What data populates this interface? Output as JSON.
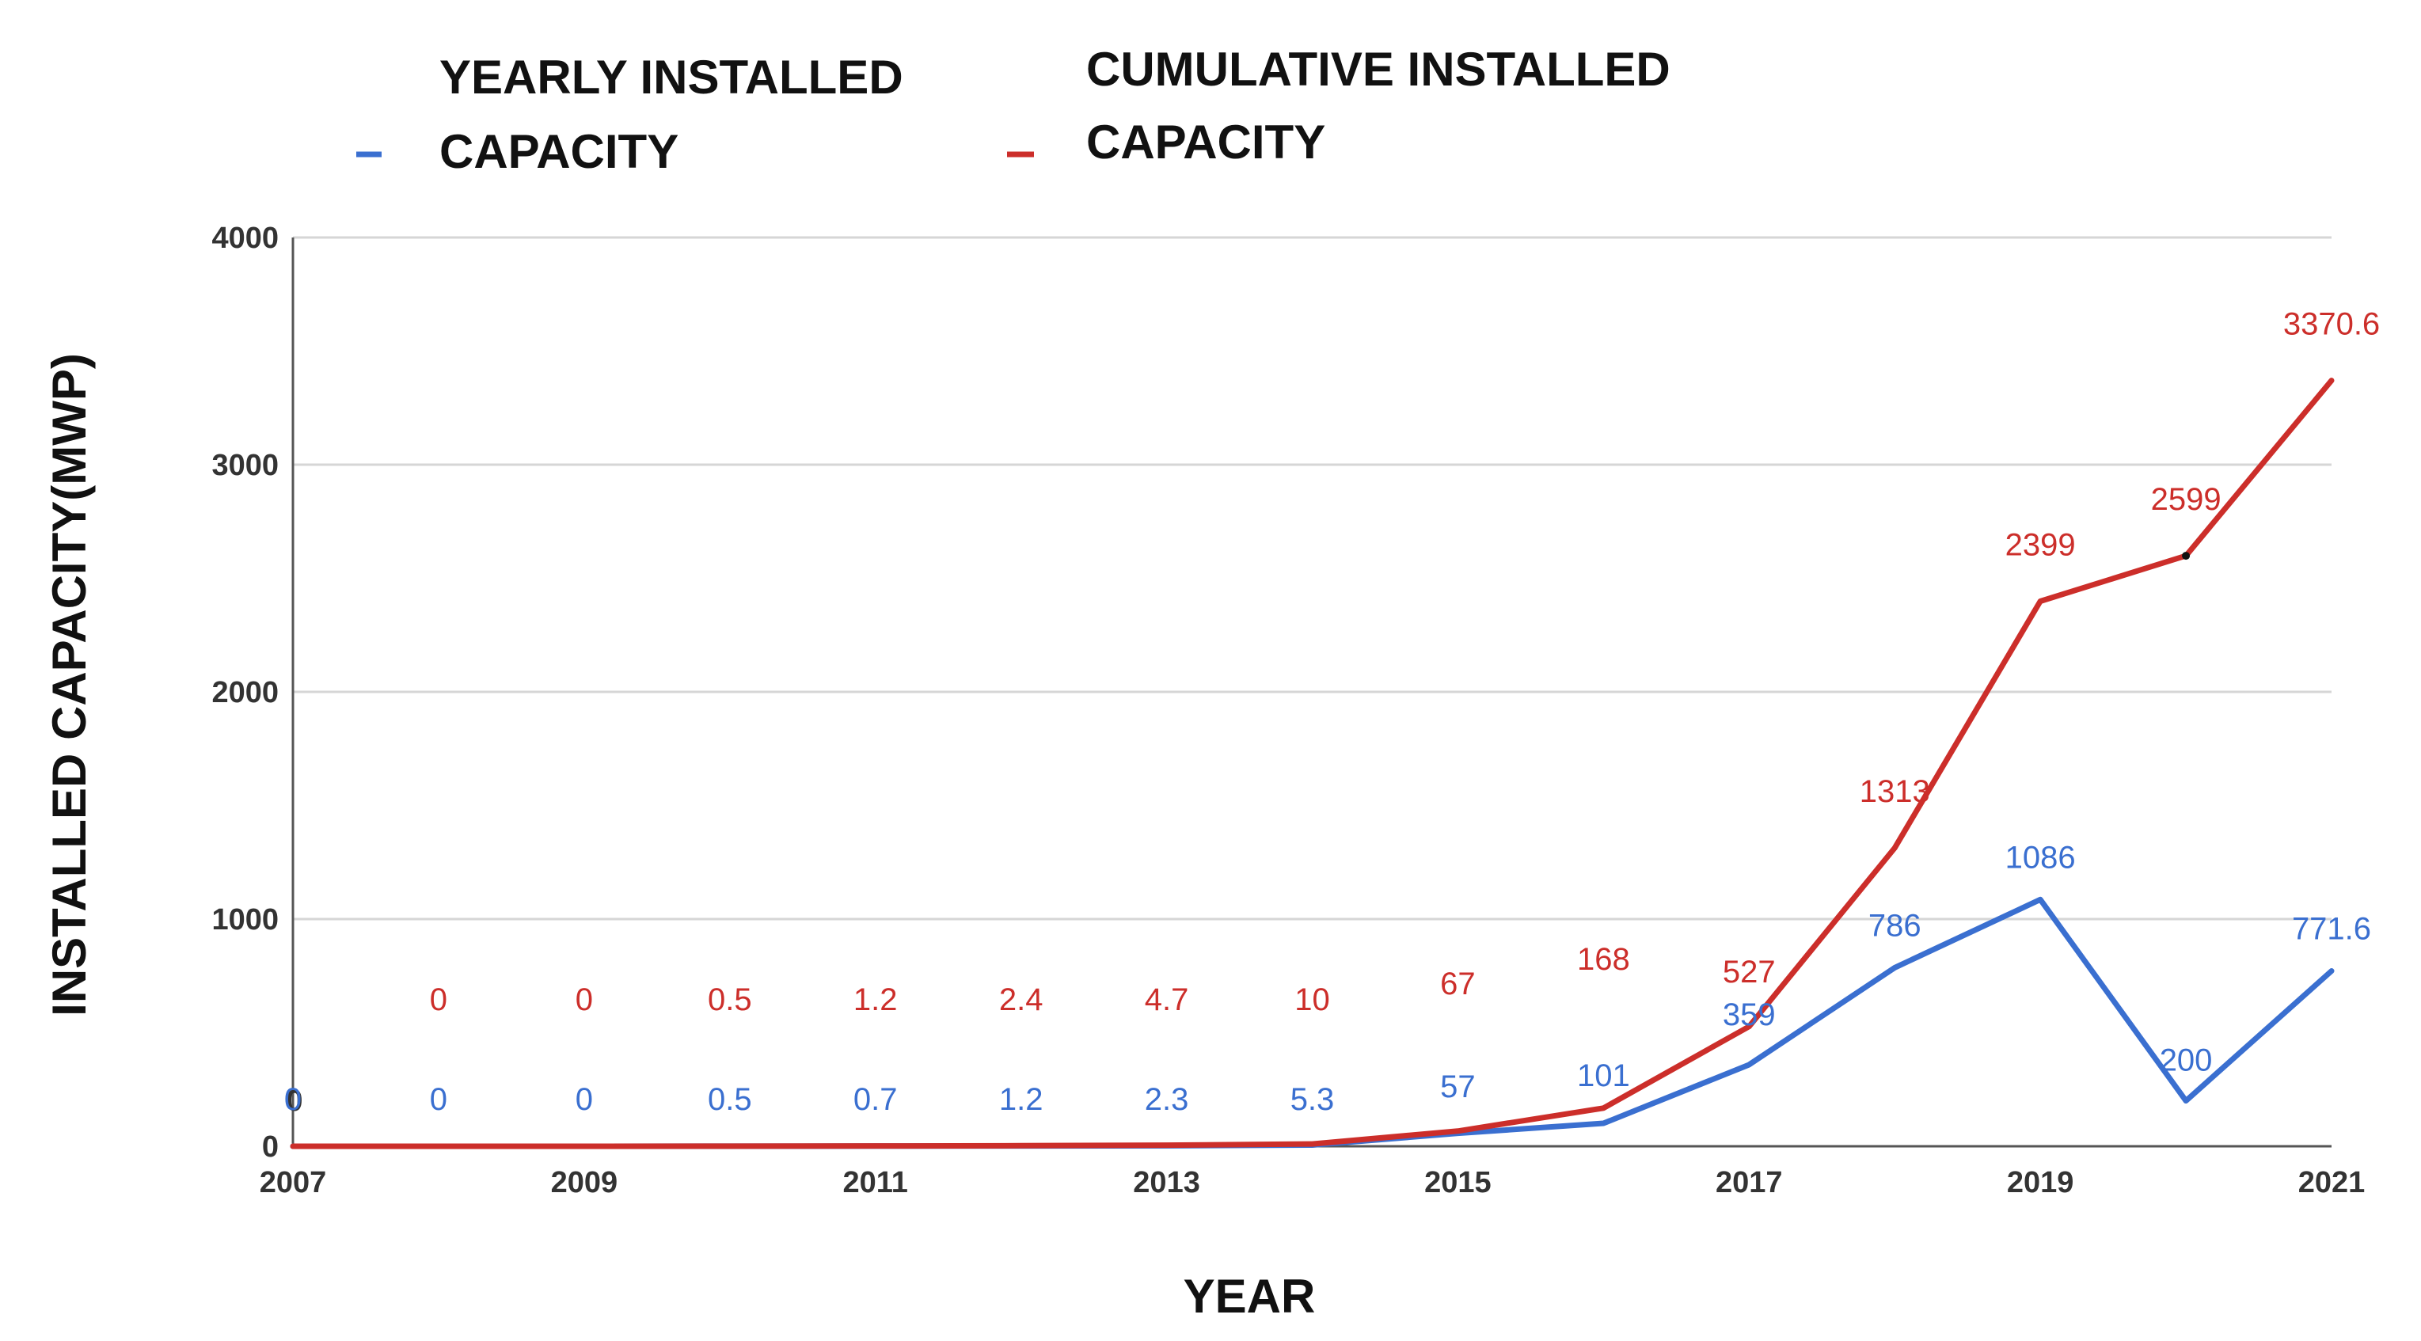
{
  "legend": [
    {
      "line1": "YEARLY INSTALLED",
      "line2": "CAPACITY",
      "color": "#3a6fd0"
    },
    {
      "line1": "CUMULATIVE INSTALLED",
      "line2": "CAPACITY",
      "color": "#cc2e2a"
    }
  ],
  "chart_data": {
    "type": "line",
    "title": "",
    "xlabel": "YEAR",
    "ylabel": "INSTALLED CAPACITY(MWP)",
    "x": [
      2007,
      2008,
      2009,
      2010,
      2011,
      2012,
      2013,
      2014,
      2015,
      2016,
      2017,
      2018,
      2019,
      2020,
      2021
    ],
    "xlim": [
      2007,
      2021
    ],
    "ylim": [
      0,
      4000
    ],
    "x_tick_labels": [
      "2007",
      "2009",
      "2011",
      "2013",
      "2015",
      "2017",
      "2019",
      "2021"
    ],
    "y_tick_labels": [
      "0",
      "1000",
      "2000",
      "3000",
      "4000"
    ],
    "y_ticks": [
      0,
      1000,
      2000,
      3000,
      4000
    ],
    "grid": true,
    "legend_position": "top",
    "series": [
      {
        "name": "YEARLY INSTALLED CAPACITY",
        "color": "#3a6fd0",
        "values": [
          0,
          0,
          0,
          0.5,
          0.7,
          1.2,
          2.3,
          5.3,
          57,
          101,
          359,
          786,
          1086,
          200,
          771.6
        ],
        "labels": [
          "0",
          "0",
          "0",
          "0.5",
          "0.7",
          "1.2",
          "2.3",
          "5.3",
          "57",
          "101",
          "359",
          "786",
          "1086",
          "200",
          "771.6"
        ]
      },
      {
        "name": "CUMULATIVE INSTALLED CAPACITY",
        "color": "#cc2e2a",
        "values": [
          0,
          0,
          0,
          0.5,
          1.2,
          2.4,
          4.7,
          10,
          67,
          168,
          527,
          1313,
          2399,
          2599,
          3370.6
        ],
        "labels": [
          "",
          "0",
          "0",
          "0.5",
          "1.2",
          "2.4",
          "4.7",
          "10",
          "67",
          "168",
          "527",
          "1313",
          "2399",
          "2599",
          "3370.6"
        ]
      }
    ]
  }
}
